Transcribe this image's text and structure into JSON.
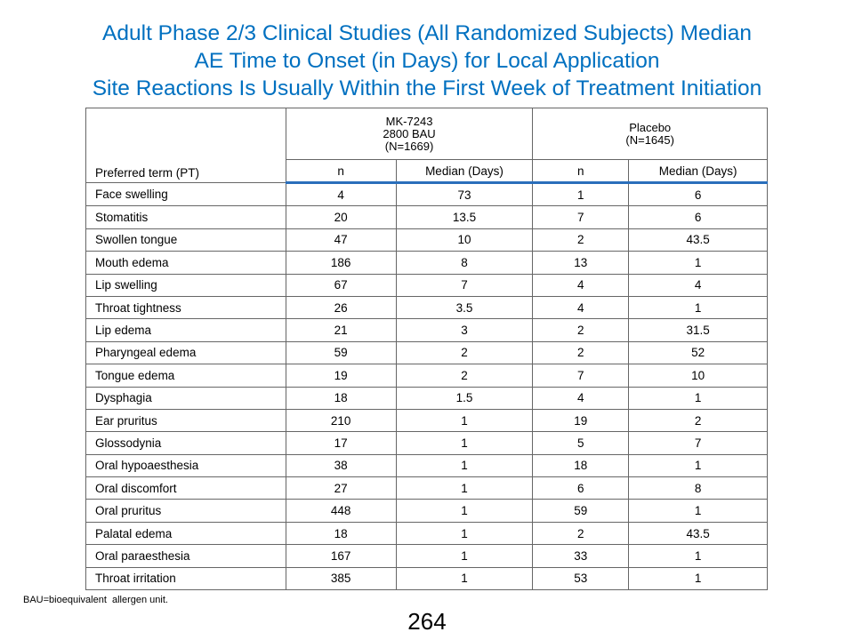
{
  "title": {
    "line1": "Adult Phase 2/3 Clinical Studies (All Randomized Subjects) Median",
    "line2": "AE Time to Onset (in Days) for Local Application",
    "line3": "Site Reactions Is Usually Within the First Week of Treatment Initiation"
  },
  "table": {
    "pt_header": "Preferred term (PT)",
    "group1": {
      "line1": "MK-7243",
      "line2": "2800 BAU",
      "line3": "(N=1669)"
    },
    "group2": {
      "line1": "Placebo",
      "line2": "(N=1645)"
    },
    "sub": {
      "n1": "n",
      "m1": "Median (Days)",
      "n2": "n",
      "m2": "Median (Days)"
    },
    "rows": [
      {
        "pt": "Face swelling",
        "n1": "4",
        "m1": "73",
        "n2": "1",
        "m2": "6"
      },
      {
        "pt": "Stomatitis",
        "n1": "20",
        "m1": "13.5",
        "n2": "7",
        "m2": "6"
      },
      {
        "pt": "Swollen tongue",
        "n1": "47",
        "m1": "10",
        "n2": "2",
        "m2": "43.5"
      },
      {
        "pt": "Mouth edema",
        "n1": "186",
        "m1": "8",
        "n2": "13",
        "m2": "1"
      },
      {
        "pt": "Lip swelling",
        "n1": "67",
        "m1": "7",
        "n2": "4",
        "m2": "4"
      },
      {
        "pt": "Throat tightness",
        "n1": "26",
        "m1": "3.5",
        "n2": "4",
        "m2": "1"
      },
      {
        "pt": "Lip edema",
        "n1": "21",
        "m1": "3",
        "n2": "2",
        "m2": "31.5"
      },
      {
        "pt": "Pharyngeal edema",
        "n1": "59",
        "m1": "2",
        "n2": "2",
        "m2": "52"
      },
      {
        "pt": "Tongue edema",
        "n1": "19",
        "m1": "2",
        "n2": "7",
        "m2": "10"
      },
      {
        "pt": "Dysphagia",
        "n1": "18",
        "m1": "1.5",
        "n2": "4",
        "m2": "1"
      },
      {
        "pt": "Ear pruritus",
        "n1": "210",
        "m1": "1",
        "n2": "19",
        "m2": "2"
      },
      {
        "pt": "Glossodynia",
        "n1": "17",
        "m1": "1",
        "n2": "5",
        "m2": "7"
      },
      {
        "pt": "Oral hypoaesthesia",
        "n1": "38",
        "m1": "1",
        "n2": "18",
        "m2": "1"
      },
      {
        "pt": "Oral discomfort",
        "n1": "27",
        "m1": "1",
        "n2": "6",
        "m2": "8"
      },
      {
        "pt": "Oral pruritus",
        "n1": "448",
        "m1": "1",
        "n2": "59",
        "m2": "1"
      },
      {
        "pt": "Palatal edema",
        "n1": "18",
        "m1": "1",
        "n2": "2",
        "m2": "43.5"
      },
      {
        "pt": "Oral paraesthesia",
        "n1": "167",
        "m1": "1",
        "n2": "33",
        "m2": "1"
      },
      {
        "pt": "Throat irritation",
        "n1": "385",
        "m1": "1",
        "n2": "53",
        "m2": "1"
      }
    ]
  },
  "footnote": "BAU=bioequivalent  allergen unit.",
  "page_number": "264",
  "colors": {
    "title": "#0070C0",
    "header_rule": "#2a6ebb"
  }
}
